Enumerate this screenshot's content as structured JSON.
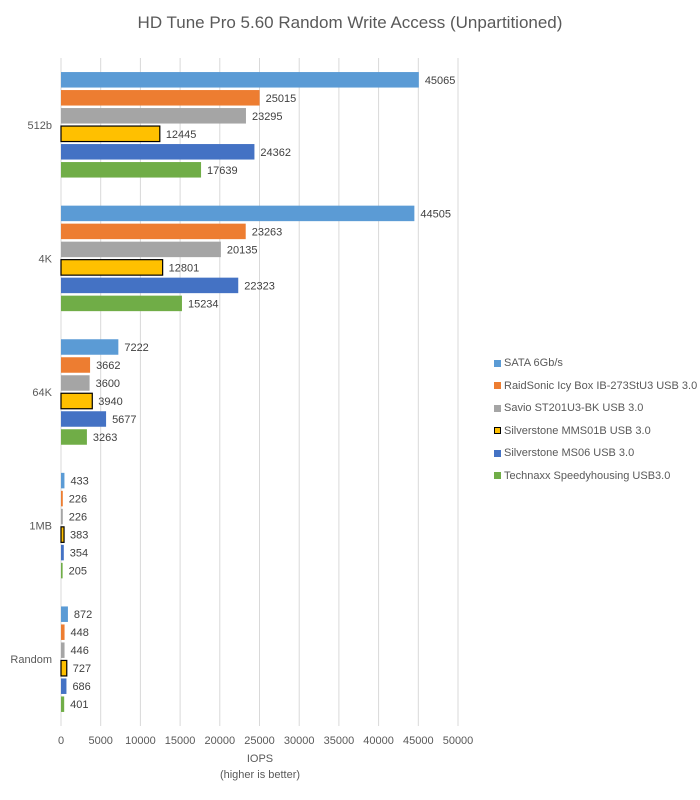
{
  "chart_data": {
    "type": "bar",
    "orientation": "horizontal",
    "title": "HD Tune Pro 5.60 Random Write Access (Unpartitioned)",
    "xlabel": "IOPS",
    "xlabel_note": "(higher is better)",
    "ylabel": "",
    "xlim": [
      0,
      50000
    ],
    "x_ticks": [
      0,
      5000,
      10000,
      15000,
      20000,
      25000,
      30000,
      35000,
      40000,
      45000,
      50000
    ],
    "grid": true,
    "legend_position": "right",
    "categories": [
      "512b",
      "4K",
      "64K",
      "1MB",
      "Random"
    ],
    "series": [
      {
        "name": "SATA 6Gb/s",
        "color": "#5B9BD5",
        "values": [
          45065,
          44505,
          7222,
          433,
          872
        ]
      },
      {
        "name": "RaidSonic Icy Box IB-273StU3 USB 3.0",
        "color": "#ED7D31",
        "values": [
          25015,
          23263,
          3662,
          226,
          448
        ]
      },
      {
        "name": "Savio ST201U3-BK USB 3.0",
        "color": "#A5A5A5",
        "values": [
          23295,
          20135,
          3600,
          226,
          446
        ]
      },
      {
        "name": "Silverstone MMS01B USB 3.0",
        "color": "#FFC000",
        "border": "#000000",
        "values": [
          12445,
          12801,
          3940,
          383,
          727
        ]
      },
      {
        "name": "Silverstone MS06 USB 3.0",
        "color": "#4472C4",
        "values": [
          24362,
          22323,
          5677,
          354,
          686
        ]
      },
      {
        "name": "Technaxx Speedyhousing USB3.0",
        "color": "#70AD47",
        "values": [
          17639,
          15234,
          3263,
          205,
          401
        ]
      }
    ]
  }
}
